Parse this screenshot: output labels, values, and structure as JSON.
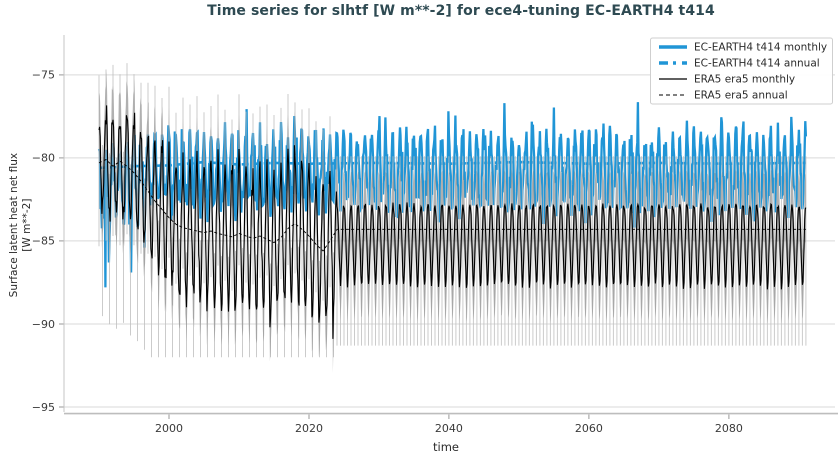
{
  "chart_data": {
    "type": "line",
    "seed": 20240414,
    "title": "Time series for slhtf [W m**-2] for ece4-tuning EC-EARTH4 t414",
    "xlabel": "time",
    "ylabel_line1": "Surface latent heat net flux",
    "ylabel_line2": "[W m**-2]",
    "xlim": [
      1985.0,
      2093.3
    ],
    "ylim": [
      -95.3,
      -72.6
    ],
    "x_start": 1990.0,
    "x_end": 2091.0,
    "xticks": [
      2000,
      2020,
      2040,
      2060,
      2080
    ],
    "xtick_labels": [
      "2000",
      "2020",
      "2040",
      "2060",
      "2080"
    ],
    "yticks": [
      -75,
      -80,
      -85,
      -90,
      -95
    ],
    "ytick_labels": [
      "−75",
      "−80",
      "−85",
      "−90",
      "−95"
    ],
    "grid": "horizontal",
    "legend_position": "upper right",
    "colors": {
      "blue": "#2095d6",
      "black": "#000000",
      "grid": "#d9d9d9",
      "spine": "#c6c6c6",
      "axis_bottom": "#bdbdbd",
      "tick_mark": "#9a9a9a",
      "band": "rgba(140,140,140,0.6)",
      "whisker": "rgba(190,190,190,0.8)",
      "title": "#2e4a52",
      "tick_label": "#3a3a3a",
      "axis_label": "#2b2b2b",
      "legend_border": "#cfcfcf",
      "legend_text": "#2b2b2b"
    },
    "ec_monthly": {
      "label": "EC-EARTH4 t414 monthly",
      "mean_anchors": [
        [
          1990,
          -81.2
        ],
        [
          1994,
          -81.0
        ],
        [
          1997,
          -80.6
        ],
        [
          2000,
          -80.45
        ],
        [
          2091,
          -80.4
        ]
      ],
      "seasonal": [
        1.7,
        1.1,
        0.2,
        -0.7,
        -1.5,
        -2.1,
        -2.3,
        -2.0,
        -1.2,
        -0.2,
        0.8,
        1.5
      ],
      "noise": 0.6,
      "spike_prob": 0.015,
      "spike_amp": 1.7,
      "deep_dips": [
        [
          1990.9,
          -87.8
        ],
        [
          1991.45,
          -86.3
        ],
        [
          1994.6,
          -86.9
        ],
        [
          1996.5,
          -85.4
        ]
      ],
      "clamp_min": -88.0,
      "clamp_max": -75.2,
      "line_width": 2.3
    },
    "ec_annual": {
      "label": "EC-EARTH4 t414 annual",
      "anchors": [
        [
          1990,
          -80.6
        ],
        [
          1995,
          -80.5
        ],
        [
          2000,
          -80.45
        ],
        [
          2005,
          -80.25
        ],
        [
          2010,
          -80.4
        ],
        [
          2015,
          -80.3
        ],
        [
          2020,
          -80.35
        ],
        [
          2030,
          -80.3
        ],
        [
          2040,
          -80.35
        ],
        [
          2050,
          -80.25
        ],
        [
          2060,
          -80.35
        ],
        [
          2070,
          -80.3
        ],
        [
          2080,
          -80.35
        ],
        [
          2091,
          -80.3
        ]
      ],
      "line_width": 2.6,
      "dash": "7 4"
    },
    "era5_monthly": {
      "label": "ERA5 era5 monthly",
      "real_end": 2024.0,
      "annual_anchors": [
        [
          1990,
          -80.3
        ],
        [
          1991,
          -80.1
        ],
        [
          1992,
          -80.5
        ],
        [
          1993,
          -80.2
        ],
        [
          1994,
          -80.5
        ],
        [
          1995,
          -80.9
        ],
        [
          1996,
          -81.4
        ],
        [
          1997,
          -82.0
        ],
        [
          1998,
          -82.6
        ],
        [
          1999,
          -83.1
        ],
        [
          2000,
          -83.6
        ],
        [
          2001,
          -84.0
        ],
        [
          2002,
          -84.2
        ],
        [
          2003,
          -84.3
        ],
        [
          2004,
          -84.4
        ],
        [
          2005,
          -84.5
        ],
        [
          2006,
          -84.4
        ],
        [
          2007,
          -84.55
        ],
        [
          2008,
          -84.65
        ],
        [
          2009,
          -84.75
        ],
        [
          2010,
          -84.55
        ],
        [
          2011,
          -84.7
        ],
        [
          2012,
          -84.85
        ],
        [
          2013,
          -84.7
        ],
        [
          2014,
          -84.9
        ],
        [
          2015,
          -85.1
        ],
        [
          2016,
          -84.8
        ],
        [
          2017,
          -84.25
        ],
        [
          2018,
          -83.95
        ],
        [
          2019,
          -84.3
        ],
        [
          2020,
          -84.7
        ],
        [
          2021,
          -85.2
        ],
        [
          2022,
          -85.6
        ],
        [
          2023,
          -85.0
        ]
      ],
      "amp_anchors": [
        [
          1990,
          2.7
        ],
        [
          1996,
          3.2
        ],
        [
          2000,
          3.8
        ],
        [
          2005,
          4.3
        ],
        [
          2023,
          4.3
        ]
      ],
      "seasonal_shape": [
        1.0,
        0.85,
        0.4,
        -0.1,
        -0.55,
        -0.9,
        -1.0,
        -0.85,
        -0.4,
        0.1,
        0.5,
        0.85
      ],
      "noise": 0.45,
      "deep_dips": [
        [
          2004.45,
          -88.7
        ],
        [
          2009.45,
          -89.2
        ],
        [
          2014.45,
          -90.2
        ],
        [
          2020.45,
          -89.6
        ],
        [
          2023.45,
          -90.9
        ]
      ],
      "climatology": [
        -82.9,
        -83.0,
        -83.6,
        -84.6,
        -85.8,
        -86.9,
        -87.7,
        -87.4,
        -86.3,
        -85.0,
        -83.8,
        -83.0
      ],
      "climo_noise": 0.1,
      "line_width": 1.1
    },
    "era5_annual": {
      "label": "ERA5 era5 annual",
      "anchors": [
        [
          1990,
          -80.3
        ],
        [
          1991,
          -80.1
        ],
        [
          1992,
          -80.5
        ],
        [
          1993,
          -80.2
        ],
        [
          1994,
          -80.5
        ],
        [
          1995,
          -80.9
        ],
        [
          1996,
          -81.4
        ],
        [
          1997,
          -82.0
        ],
        [
          1998,
          -82.6
        ],
        [
          1999,
          -83.1
        ],
        [
          2000,
          -83.6
        ],
        [
          2001,
          -84.0
        ],
        [
          2002,
          -84.2
        ],
        [
          2003,
          -84.3
        ],
        [
          2004,
          -84.4
        ],
        [
          2005,
          -84.5
        ],
        [
          2006,
          -84.4
        ],
        [
          2007,
          -84.55
        ],
        [
          2008,
          -84.65
        ],
        [
          2009,
          -84.75
        ],
        [
          2010,
          -84.55
        ],
        [
          2011,
          -84.7
        ],
        [
          2012,
          -84.85
        ],
        [
          2013,
          -84.7
        ],
        [
          2014,
          -84.9
        ],
        [
          2015,
          -85.1
        ],
        [
          2016,
          -84.8
        ],
        [
          2017,
          -84.25
        ],
        [
          2018,
          -83.95
        ],
        [
          2019,
          -84.3
        ],
        [
          2020,
          -84.7
        ],
        [
          2021,
          -85.2
        ],
        [
          2022,
          -85.6
        ],
        [
          2023,
          -85.0
        ],
        [
          2024,
          -84.3
        ],
        [
          2091,
          -84.3
        ]
      ],
      "line_width": 0.9,
      "dash": "3 2.2"
    },
    "uncertainty": {
      "band_half": 2.05,
      "real_whisker_up": 3.3,
      "real_whisker_down": 7.0,
      "real_whisker_floor": -92.0,
      "real_whisker_cap": -73.8,
      "real_whisker_step_months": 6,
      "climo_whisker_step_months": 6,
      "climo_whisker_top": -79.9,
      "climo_whisker_bottom": -91.3
    },
    "legend": {
      "entries": [
        {
          "label": "EC-EARTH4 t414 monthly",
          "color_key": "blue",
          "width": 3.5,
          "dash": ""
        },
        {
          "label": "EC-EARTH4 t414 annual",
          "color_key": "blue",
          "width": 3.5,
          "dash": "9 5 3 6"
        },
        {
          "label": "ERA5 era5 monthly",
          "color_key": "black",
          "width": 1.2,
          "dash": ""
        },
        {
          "label": "ERA5 era5 annual",
          "color_key": "black",
          "width": 1.0,
          "dash": "4 3"
        }
      ]
    }
  }
}
